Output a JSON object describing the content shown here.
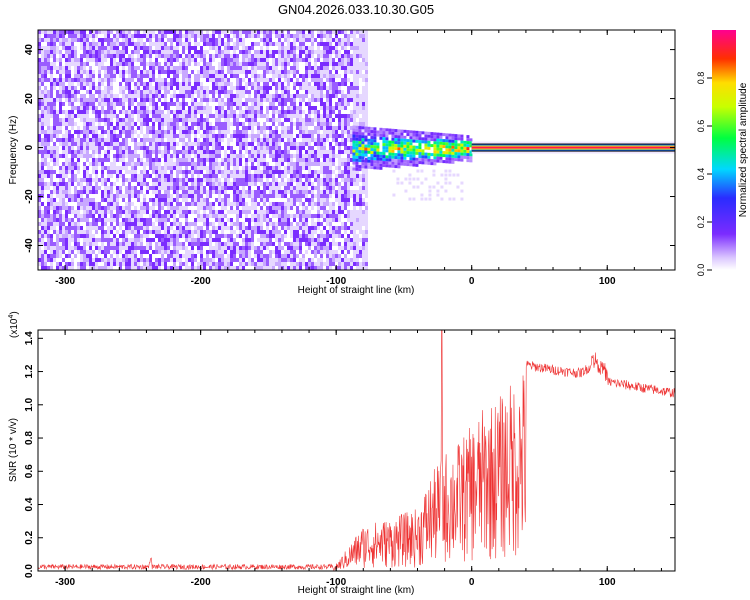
{
  "chart_data": [
    {
      "type": "heatmap",
      "title": "GN04.2026.033.10.30.G05",
      "xlabel": "Height of straight line (km)",
      "ylabel": "Frequency (Hz)",
      "xlim": [
        -320,
        150
      ],
      "ylim": [
        -50,
        48
      ],
      "xticks": [
        -300,
        -200,
        -100,
        0,
        100
      ],
      "xtick_labels": [
        "-300",
        "-200",
        "-100",
        "0",
        "100"
      ],
      "yticks": [
        -40,
        -20,
        0,
        20,
        40
      ],
      "ytick_labels": [
        "-40",
        "-20",
        "0",
        "20",
        "40"
      ],
      "colorbar": {
        "label": "Normalized spectral amplitude",
        "range": [
          0,
          1
        ],
        "ticks": [
          0.0,
          0.2,
          0.4,
          0.6,
          0.8
        ],
        "tick_labels": [
          "0.0",
          "0.2",
          "0.4",
          "0.6",
          "0.8"
        ]
      },
      "regions": [
        {
          "name": "noise",
          "x_range": [
            -320,
            -88
          ],
          "freq_range": [
            -50,
            48
          ],
          "amplitude": 0.05
        },
        {
          "name": "transition",
          "x_range": [
            -88,
            0
          ],
          "freq_range": [
            -8,
            8
          ],
          "amplitude": 0.5
        },
        {
          "name": "stable-tone",
          "x_range": [
            0,
            150
          ],
          "frequency": 0,
          "amplitude": 0.95
        }
      ]
    },
    {
      "type": "line",
      "xlabel": "Height of straight line (km)",
      "ylabel": "SNR (10 * v/v)",
      "multiplier": "(x10",
      "multiplier_exp": "4",
      "multiplier_close": ")",
      "xlim": [
        -320,
        150
      ],
      "ylim": [
        0,
        1.45
      ],
      "xticks": [
        -300,
        -200,
        -100,
        0,
        100
      ],
      "xtick_labels": [
        "-300",
        "-200",
        "-100",
        "0",
        "100"
      ],
      "yticks": [
        0.0,
        0.2,
        0.4,
        0.6,
        0.8,
        1.0,
        1.2,
        1.4
      ],
      "ytick_labels": [
        "0.0",
        "0.2",
        "0.4",
        "0.6",
        "0.8",
        "1.0",
        "1.2",
        "1.4"
      ],
      "color": "#ee3333",
      "envelope": {
        "x": [
          -320,
          -240,
          -102,
          -95,
          -80,
          -60,
          -40,
          -30,
          -20,
          -10,
          0,
          10,
          20,
          30,
          40,
          60,
          80,
          90,
          95,
          100,
          120,
          150
        ],
        "y": [
          0.02,
          0.04,
          0.02,
          0.1,
          0.28,
          0.32,
          0.38,
          0.58,
          0.72,
          0.78,
          0.88,
          1.0,
          1.05,
          1.15,
          1.25,
          1.22,
          1.2,
          1.25,
          1.2,
          1.15,
          1.12,
          1.08
        ]
      }
    }
  ]
}
